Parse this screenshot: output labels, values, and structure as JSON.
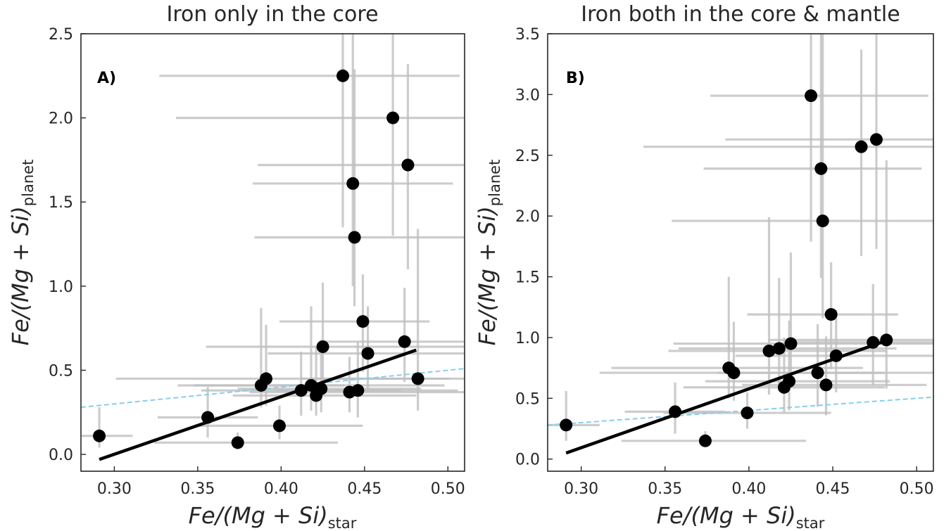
{
  "chart_data": [
    {
      "type": "scatter",
      "title": "Iron only in the core",
      "panel_label": "A)",
      "xlabel": {
        "main": "Fe/(Mg + Si)",
        "sub": "star"
      },
      "ylabel": {
        "main": "Fe/(Mg + Si)",
        "sub": "planet"
      },
      "xlim": [
        0.28,
        0.51
      ],
      "ylim": [
        -0.1,
        2.5
      ],
      "xticks": [
        "0.30",
        "0.35",
        "0.40",
        "0.45",
        "0.50"
      ],
      "yticks": [
        "0.0",
        "0.5",
        "1.0",
        "1.5",
        "2.0",
        "2.5"
      ],
      "grid": false,
      "points": [
        {
          "x": 0.291,
          "y": 0.11,
          "xerr": [
            0.02,
            0.02
          ],
          "yerr": [
            0.07,
            0.17
          ]
        },
        {
          "x": 0.356,
          "y": 0.22,
          "xerr": [
            0.03,
            0.03
          ],
          "yerr": [
            0.12,
            0.18
          ]
        },
        {
          "x": 0.374,
          "y": 0.07,
          "xerr": [
            0.05,
            0.06
          ],
          "yerr": [
            0.04,
            0.06
          ]
        },
        {
          "x": 0.388,
          "y": 0.41,
          "xerr": [
            0.05,
            0.05
          ],
          "yerr": [
            0.13,
            0.46
          ]
        },
        {
          "x": 0.391,
          "y": 0.45,
          "xerr": [
            0.09,
            0.11
          ],
          "yerr": [
            0.16,
            0.32
          ]
        },
        {
          "x": 0.399,
          "y": 0.17,
          "xerr": [
            0.05,
            0.05
          ],
          "yerr": [
            0.08,
            0.12
          ]
        },
        {
          "x": 0.412,
          "y": 0.38,
          "xerr": [
            0.06,
            0.06
          ],
          "yerr": [
            0.15,
            0.23
          ]
        },
        {
          "x": 0.418,
          "y": 0.41,
          "xerr": [
            0.07,
            0.08
          ],
          "yerr": [
            0.15,
            0.47
          ]
        },
        {
          "x": 0.421,
          "y": 0.35,
          "xerr": [
            0.05,
            0.06
          ],
          "yerr": [
            0.12,
            0.29
          ]
        },
        {
          "x": 0.424,
          "y": 0.39,
          "xerr": [
            0.05,
            0.06
          ],
          "yerr": [
            0.14,
            0.29
          ]
        },
        {
          "x": 0.425,
          "y": 0.64,
          "xerr": [
            0.07,
            0.09
          ],
          "yerr": [
            0.22,
            0.38
          ]
        },
        {
          "x": 0.437,
          "y": 2.25,
          "xerr": [
            0.11,
            0.07
          ],
          "yerr": [
            0.9,
            0.5
          ]
        },
        {
          "x": 0.441,
          "y": 0.37,
          "xerr": [
            0.06,
            0.07
          ],
          "yerr": [
            0.12,
            0.21
          ]
        },
        {
          "x": 0.443,
          "y": 1.61,
          "xerr": [
            0.06,
            0.06
          ],
          "yerr": [
            0.61,
            0.89
          ]
        },
        {
          "x": 0.444,
          "y": 1.29,
          "xerr": [
            0.06,
            0.08
          ],
          "yerr": [
            0.41,
            1.0
          ]
        },
        {
          "x": 0.446,
          "y": 0.38,
          "xerr": [
            0.05,
            0.06
          ],
          "yerr": [
            0.16,
            0.29
          ]
        },
        {
          "x": 0.449,
          "y": 0.79,
          "xerr": [
            0.05,
            0.04
          ],
          "yerr": [
            0.3,
            0.28
          ]
        },
        {
          "x": 0.452,
          "y": 0.6,
          "xerr": [
            0.06,
            0.07
          ],
          "yerr": [
            0.23,
            0.28
          ]
        },
        {
          "x": 0.467,
          "y": 2.0,
          "xerr": [
            0.13,
            0.07
          ],
          "yerr": [
            0.7,
            0.5
          ]
        },
        {
          "x": 0.474,
          "y": 0.67,
          "xerr": [
            0.05,
            0.06
          ],
          "yerr": [
            0.24,
            0.32
          ]
        },
        {
          "x": 0.476,
          "y": 1.72,
          "xerr": [
            0.09,
            0.06
          ],
          "yerr": [
            0.62,
            0.6
          ]
        },
        {
          "x": 0.482,
          "y": 0.45,
          "xerr": [
            0.07,
            0.05
          ],
          "yerr": [
            0.19,
            0.89
          ]
        }
      ],
      "fit_line": {
        "x": [
          0.291,
          0.481
        ],
        "y": [
          -0.03,
          0.62
        ]
      },
      "reference_line": {
        "x": [
          0.28,
          0.51
        ],
        "y": [
          0.28,
          0.51
        ]
      },
      "colors": {
        "marker": "#000000",
        "errorbar": "#bfbfbf",
        "fit": "#000000",
        "reference": "#87ceeb"
      }
    },
    {
      "type": "scatter",
      "title": "Iron both in the core & mantle",
      "panel_label": "B)",
      "xlabel": {
        "main": "Fe/(Mg + Si)",
        "sub": "star"
      },
      "ylabel": {
        "main": "Fe/(Mg + Si)",
        "sub": "planet"
      },
      "xlim": [
        0.28,
        0.51
      ],
      "ylim": [
        -0.1,
        3.5
      ],
      "xticks": [
        "0.30",
        "0.35",
        "0.40",
        "0.45",
        "0.50"
      ],
      "yticks": [
        "0.0",
        "0.5",
        "1.0",
        "1.5",
        "2.0",
        "2.5",
        "3.0",
        "3.5"
      ],
      "grid": false,
      "points": [
        {
          "x": 0.291,
          "y": 0.28,
          "xerr": [
            0.02,
            0.02
          ],
          "yerr": [
            0.13,
            0.28
          ]
        },
        {
          "x": 0.356,
          "y": 0.39,
          "xerr": [
            0.03,
            0.03
          ],
          "yerr": [
            0.18,
            0.24
          ]
        },
        {
          "x": 0.374,
          "y": 0.15,
          "xerr": [
            0.05,
            0.06
          ],
          "yerr": [
            0.05,
            0.08
          ]
        },
        {
          "x": 0.388,
          "y": 0.75,
          "xerr": [
            0.07,
            0.08
          ],
          "yerr": [
            0.25,
            0.75
          ]
        },
        {
          "x": 0.391,
          "y": 0.71,
          "xerr": [
            0.08,
            0.09
          ],
          "yerr": [
            0.23,
            0.42
          ]
        },
        {
          "x": 0.399,
          "y": 0.38,
          "xerr": [
            0.05,
            0.05
          ],
          "yerr": [
            0.13,
            0.17
          ]
        },
        {
          "x": 0.412,
          "y": 0.89,
          "xerr": [
            0.06,
            0.07
          ],
          "yerr": [
            0.36,
            1.1
          ]
        },
        {
          "x": 0.418,
          "y": 0.91,
          "xerr": [
            0.06,
            0.07
          ],
          "yerr": [
            0.35,
            0.58
          ]
        },
        {
          "x": 0.421,
          "y": 0.59,
          "xerr": [
            0.06,
            0.06
          ],
          "yerr": [
            0.21,
            0.41
          ]
        },
        {
          "x": 0.424,
          "y": 0.64,
          "xerr": [
            0.05,
            0.06
          ],
          "yerr": [
            0.24,
            0.5
          ]
        },
        {
          "x": 0.425,
          "y": 0.95,
          "xerr": [
            0.07,
            0.09
          ],
          "yerr": [
            0.36,
            0.75
          ]
        },
        {
          "x": 0.437,
          "y": 2.99,
          "xerr": [
            0.06,
            0.07
          ],
          "yerr": [
            1.2,
            0.6
          ]
        },
        {
          "x": 0.441,
          "y": 0.71,
          "xerr": [
            0.06,
            0.07
          ],
          "yerr": [
            0.28,
            0.4
          ]
        },
        {
          "x": 0.443,
          "y": 2.39,
          "xerr": [
            0.07,
            0.06
          ],
          "yerr": [
            0.9,
            1.2
          ]
        },
        {
          "x": 0.444,
          "y": 1.96,
          "xerr": [
            0.09,
            0.08
          ],
          "yerr": [
            0.8,
            1.6
          ]
        },
        {
          "x": 0.446,
          "y": 0.61,
          "xerr": [
            0.05,
            0.06
          ],
          "yerr": [
            0.25,
            0.4
          ]
        },
        {
          "x": 0.449,
          "y": 1.19,
          "xerr": [
            0.05,
            0.04
          ],
          "yerr": [
            0.45,
            0.43
          ]
        },
        {
          "x": 0.452,
          "y": 0.85,
          "xerr": [
            0.06,
            0.07
          ],
          "yerr": [
            0.3,
            0.38
          ]
        },
        {
          "x": 0.467,
          "y": 2.57,
          "xerr": [
            0.13,
            0.07
          ],
          "yerr": [
            0.9,
            0.8
          ]
        },
        {
          "x": 0.474,
          "y": 0.96,
          "xerr": [
            0.05,
            0.06
          ],
          "yerr": [
            0.35,
            0.48
          ]
        },
        {
          "x": 0.476,
          "y": 2.63,
          "xerr": [
            0.09,
            0.06
          ],
          "yerr": [
            0.9,
            0.9
          ]
        },
        {
          "x": 0.482,
          "y": 0.98,
          "xerr": [
            0.07,
            0.05
          ],
          "yerr": [
            0.4,
            1.48
          ]
        }
      ],
      "fit_line": {
        "x": [
          0.291,
          0.481
        ],
        "y": [
          0.05,
          0.97
        ]
      },
      "reference_line": {
        "x": [
          0.28,
          0.51
        ],
        "y": [
          0.28,
          0.51
        ]
      },
      "colors": {
        "marker": "#000000",
        "errorbar": "#bfbfbf",
        "fit": "#000000",
        "reference": "#87ceeb"
      }
    }
  ]
}
